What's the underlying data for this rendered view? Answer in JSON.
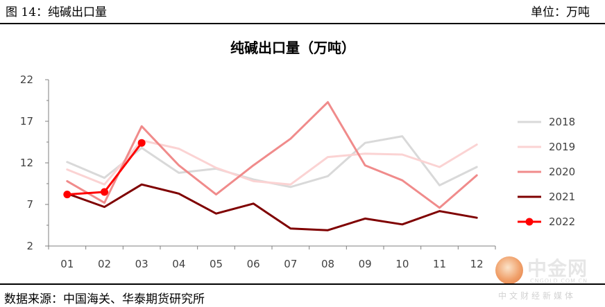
{
  "header": {
    "figure_label": "图 14：纯碱出口量",
    "unit_label": "单位：万吨"
  },
  "source": "数据来源：中国海关、华泰期货研究所",
  "watermark": {
    "name": "中金网",
    "site": "CNGOLD.COM.CN",
    "sub": "中文财经新媒体"
  },
  "chart_data": {
    "type": "line",
    "title": "纯碱出口量（万吨）",
    "categories": [
      "01",
      "02",
      "03",
      "04",
      "05",
      "06",
      "07",
      "08",
      "09",
      "10",
      "11",
      "12"
    ],
    "ylim": [
      2,
      22
    ],
    "yticks": [
      2,
      7,
      12,
      17,
      22
    ],
    "grid": false,
    "legend_position": "right",
    "series": [
      {
        "name": "2018",
        "color": "#d9d9d9",
        "markers": false,
        "values": [
          12.1,
          10.2,
          13.8,
          10.8,
          11.3,
          10.0,
          9.1,
          10.4,
          14.4,
          15.2,
          9.3,
          11.5
        ]
      },
      {
        "name": "2019",
        "color": "#fbd3d3",
        "markers": false,
        "values": [
          11.2,
          9.4,
          14.7,
          13.7,
          11.4,
          9.8,
          9.4,
          12.7,
          13.1,
          13.0,
          11.5,
          14.2
        ]
      },
      {
        "name": "2020",
        "color": "#f08b8b",
        "markers": false,
        "values": [
          9.8,
          7.2,
          16.4,
          11.7,
          8.2,
          11.7,
          14.9,
          19.3,
          11.7,
          9.9,
          6.6,
          10.5
        ]
      },
      {
        "name": "2021",
        "color": "#7f0000",
        "markers": false,
        "values": [
          8.3,
          6.7,
          9.4,
          8.3,
          5.9,
          7.1,
          4.1,
          3.9,
          5.3,
          4.6,
          6.2,
          5.4
        ]
      },
      {
        "name": "2022",
        "color": "#ff0000",
        "markers": true,
        "values": [
          8.2,
          8.5,
          14.4,
          null,
          null,
          null,
          null,
          null,
          null,
          null,
          null,
          null
        ]
      }
    ]
  }
}
